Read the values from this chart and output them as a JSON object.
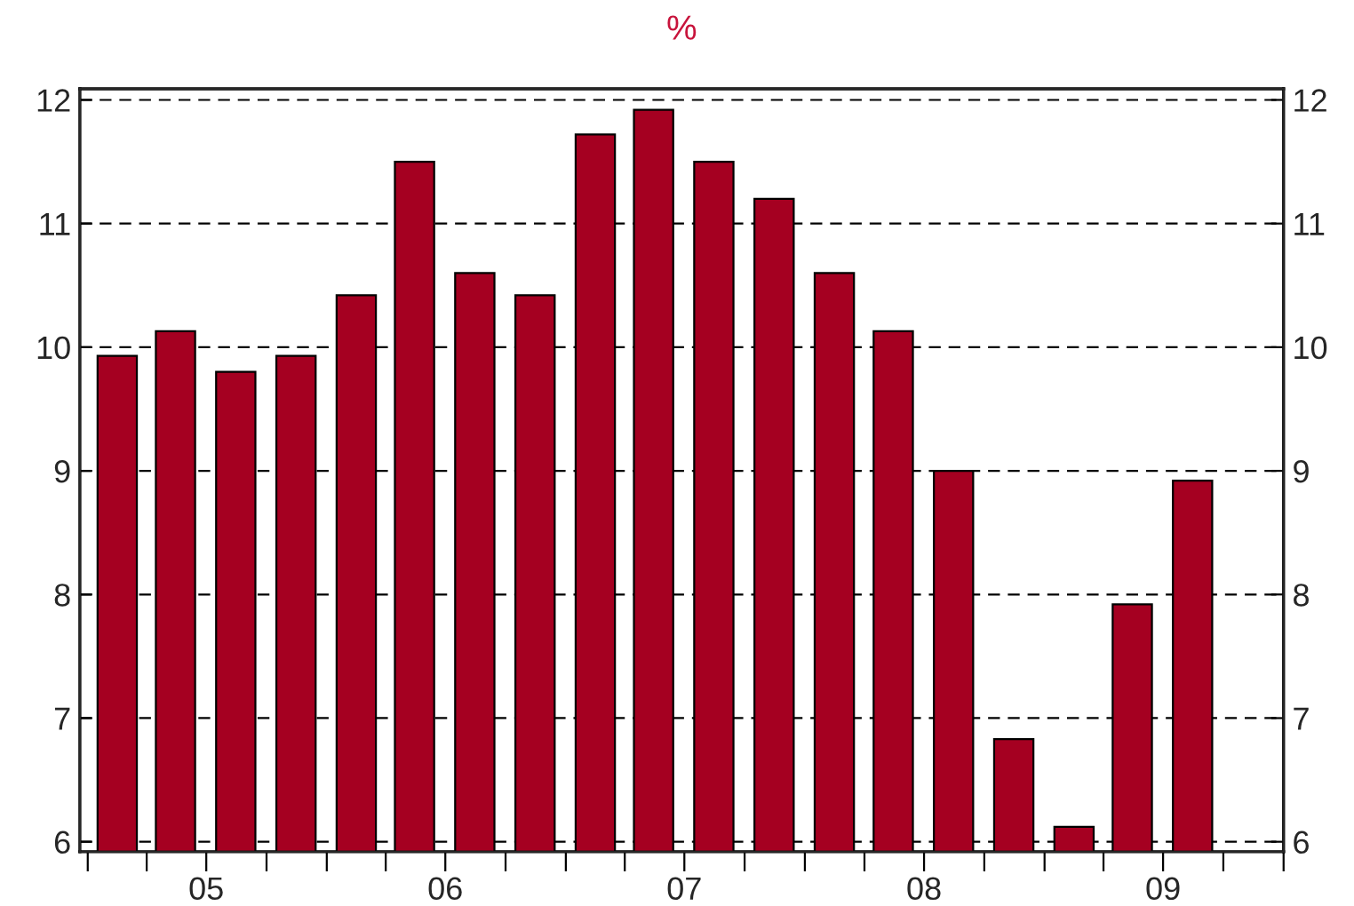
{
  "chart_data": {
    "type": "bar",
    "title": "%",
    "x": [
      "2005-02-15",
      "2005-05-15",
      "2005-08-15",
      "2005-11-15",
      "2006-02-15",
      "2006-05-15",
      "2006-08-15",
      "2006-11-15",
      "2007-02-15",
      "2007-05-15",
      "2007-08-15",
      "2007-11-15",
      "2008-02-15",
      "2008-05-15",
      "2008-08-15",
      "2008-11-15",
      "2009-02-15",
      "2009-05-15",
      "2009-08-15"
    ],
    "series": [
      {
        "color": "#a50021",
        "values": [
          9.93,
          10.13,
          9.8,
          9.93,
          10.42,
          11.5,
          10.6,
          10.42,
          11.72,
          11.92,
          11.5,
          11.2,
          10.6,
          10.13,
          9.0,
          6.83,
          6.12,
          7.92,
          8.92
        ]
      }
    ],
    "xlim": [
      "2004-12-20",
      "2010-01-01"
    ],
    "xticks": [
      {
        "value": "2005-01-01",
        "label": null
      },
      {
        "value": "2005-04-01",
        "label": null
      },
      {
        "value": "2005-07-01",
        "label": "05"
      },
      {
        "value": "2005-10-01",
        "label": null
      },
      {
        "value": "2006-01-01",
        "label": null
      },
      {
        "value": "2006-04-01",
        "label": null
      },
      {
        "value": "2006-07-01",
        "label": "06"
      },
      {
        "value": "2006-10-01",
        "label": null
      },
      {
        "value": "2007-01-01",
        "label": null
      },
      {
        "value": "2007-04-01",
        "label": null
      },
      {
        "value": "2007-07-01",
        "label": "07"
      },
      {
        "value": "2007-10-01",
        "label": null
      },
      {
        "value": "2008-01-01",
        "label": null
      },
      {
        "value": "2008-04-01",
        "label": null
      },
      {
        "value": "2008-07-01",
        "label": "08"
      },
      {
        "value": "2008-10-01",
        "label": null
      },
      {
        "value": "2009-01-01",
        "label": null
      },
      {
        "value": "2009-04-01",
        "label": null
      },
      {
        "value": "2009-07-01",
        "label": "09"
      },
      {
        "value": "2009-10-01",
        "label": null
      },
      {
        "value": "2010-01-01",
        "label": null
      }
    ],
    "ylim": [
      5.92,
      12.09
    ],
    "yticks": [
      6,
      7,
      8,
      9,
      10,
      11,
      12
    ],
    "y2lim": [
      5.92,
      12.09
    ],
    "y2ticks": [
      6,
      7,
      8,
      9,
      10,
      11,
      12
    ],
    "grid": "y"
  }
}
